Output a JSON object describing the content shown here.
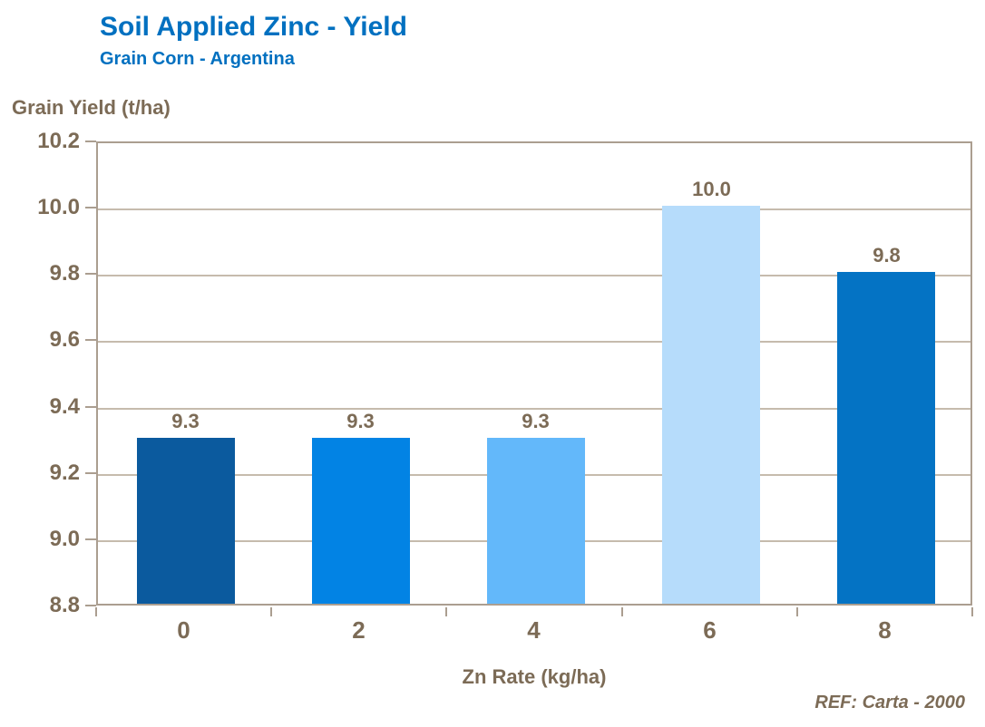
{
  "header": {
    "title": "Soil Applied Zinc - Yield",
    "subtitle": "Grain Corn - Argentina",
    "title_color": "#0070C0"
  },
  "footer": {
    "ref_label": "REF: Carta - 2000"
  },
  "chart_data": {
    "type": "bar",
    "title": "Soil Applied Zinc - Yield",
    "subtitle": "Grain Corn - Argentina",
    "categories": [
      "0",
      "2",
      "4",
      "6",
      "8"
    ],
    "values": [
      9.3,
      9.3,
      9.3,
      10.0,
      9.8
    ],
    "value_labels": [
      "9.3",
      "9.3",
      "9.3",
      "10.0",
      "9.8"
    ],
    "bar_colors": [
      "#0B5A9E",
      "#0283E4",
      "#63B8FA",
      "#B6DCFB",
      "#0473C4"
    ],
    "xlabel": "Zn Rate (kg/ha)",
    "ylabel": "Grain Yield (t/ha)",
    "ylim": [
      8.8,
      10.2
    ],
    "ytick_step": 0.2,
    "ytick_labels": [
      "8.8",
      "9.0",
      "9.2",
      "9.4",
      "9.6",
      "9.8",
      "10.0",
      "10.2"
    ],
    "grid": true,
    "legend_position": "none",
    "annotation": "REF: Carta - 2000",
    "colors": {
      "text": "#7C6B56",
      "axis": "#AB9E90",
      "grid": "#C6BBAD"
    }
  }
}
